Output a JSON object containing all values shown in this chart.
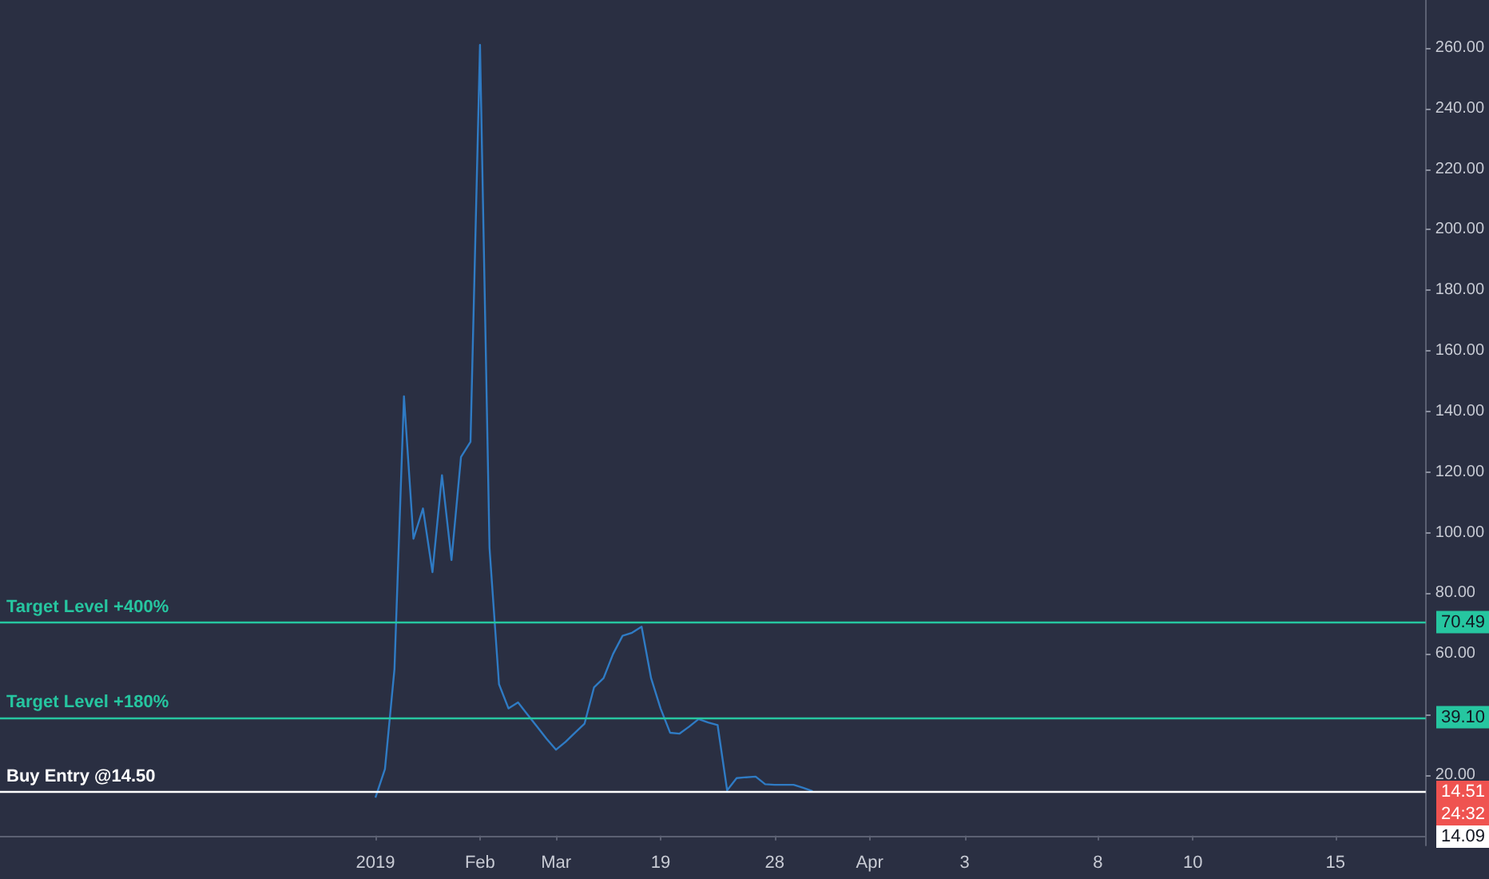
{
  "chart_data": {
    "type": "line",
    "categories": [
      null,
      null,
      null,
      null,
      null,
      null,
      null,
      null,
      null,
      null,
      null,
      null,
      null,
      null,
      null,
      null,
      null,
      null,
      null,
      null,
      null,
      null,
      null,
      null,
      null,
      null,
      null,
      null,
      null,
      null,
      null,
      null,
      null,
      null,
      null,
      null,
      null,
      null,
      null,
      "2019",
      null,
      null,
      null,
      null,
      null,
      null,
      null,
      null,
      null,
      null,
      "Feb",
      null,
      null,
      null,
      null,
      null,
      null,
      null,
      "Mar",
      null,
      null,
      null,
      null,
      null,
      null,
      null,
      null,
      null,
      null,
      "19",
      null,
      null,
      null,
      null,
      null,
      null,
      null,
      null,
      null,
      null,
      null,
      "28",
      null,
      null,
      null,
      null,
      null,
      null,
      null,
      null,
      null,
      "Apr",
      null,
      null,
      null,
      null,
      null,
      null,
      null,
      null,
      null,
      "3",
      null,
      null,
      null,
      null,
      null,
      null,
      null,
      null,
      null,
      null,
      null,
      null,
      null,
      "8",
      null,
      null,
      null,
      null,
      null,
      null,
      null,
      null,
      null,
      "10",
      null,
      null,
      null,
      null,
      null,
      null,
      null,
      null,
      null,
      null,
      null,
      null,
      null,
      null,
      "15",
      null,
      null,
      null,
      null,
      null,
      null,
      null,
      null,
      null
    ],
    "series": [
      {
        "color": "#2f7bc4",
        "values": [
          null,
          null,
          null,
          null,
          null,
          null,
          null,
          null,
          null,
          null,
          null,
          null,
          null,
          null,
          null,
          null,
          null,
          null,
          null,
          null,
          null,
          null,
          null,
          null,
          null,
          null,
          null,
          null,
          null,
          null,
          null,
          null,
          null,
          null,
          null,
          null,
          null,
          null,
          null,
          12.6,
          22,
          55,
          145,
          98,
          108,
          87,
          119,
          91,
          125,
          130,
          261,
          95,
          50,
          42,
          44,
          40,
          36,
          32,
          28.4,
          31,
          34,
          37,
          49,
          52,
          60,
          66,
          67,
          69,
          52,
          42,
          34,
          33.7,
          36,
          38.5,
          37.4,
          36.5,
          15,
          19,
          19.3,
          19.5,
          17,
          16.8,
          16.8,
          16.8,
          15.8,
          14.7,
          null,
          null,
          null,
          null,
          null,
          null,
          null,
          null,
          null,
          null,
          null,
          null,
          null,
          null,
          null,
          null,
          null,
          null,
          null,
          null,
          null,
          null,
          null,
          null,
          null,
          null,
          null,
          null,
          null,
          null,
          null,
          null,
          null,
          null,
          null,
          null,
          null,
          null,
          null,
          null,
          null,
          null,
          null,
          null,
          null,
          null,
          null,
          null,
          null,
          null,
          null,
          null,
          null,
          null,
          null,
          null,
          null,
          null,
          null,
          null,
          null,
          null,
          null,
          null
        ]
      }
    ],
    "ylim": [
      -3.2,
      275.8
    ],
    "yticks": [
      {
        "value": 20,
        "label": "20.00"
      },
      {
        "value": 40,
        "label": null
      },
      {
        "value": 60,
        "label": "60.00"
      },
      {
        "value": 80,
        "label": "80.00"
      },
      {
        "value": 100,
        "label": "100.00"
      },
      {
        "value": 120,
        "label": "120.00"
      },
      {
        "value": 140,
        "label": "140.00"
      },
      {
        "value": 160,
        "label": "160.00"
      },
      {
        "value": 180,
        "label": "180.00"
      },
      {
        "value": 200,
        "label": "200.00"
      },
      {
        "value": 220,
        "label": "220.00"
      },
      {
        "value": 240,
        "label": "240.00"
      },
      {
        "value": 260,
        "label": "260.00"
      }
    ],
    "ref_lines": [
      {
        "axis": "y",
        "value": 70.49,
        "label": "Target Level +400%",
        "color": "#26c6a0"
      },
      {
        "axis": "y",
        "value": 39.1,
        "label": "Target Level +180%",
        "color": "#26c6a0"
      },
      {
        "axis": "y",
        "value": 14.5,
        "label": "Buy Entry @14.50",
        "color": "#ffffff"
      }
    ],
    "annotations": [
      "70.49",
      "39.10",
      "14.51",
      "24:32",
      "14.09"
    ],
    "grid": false
  }
}
